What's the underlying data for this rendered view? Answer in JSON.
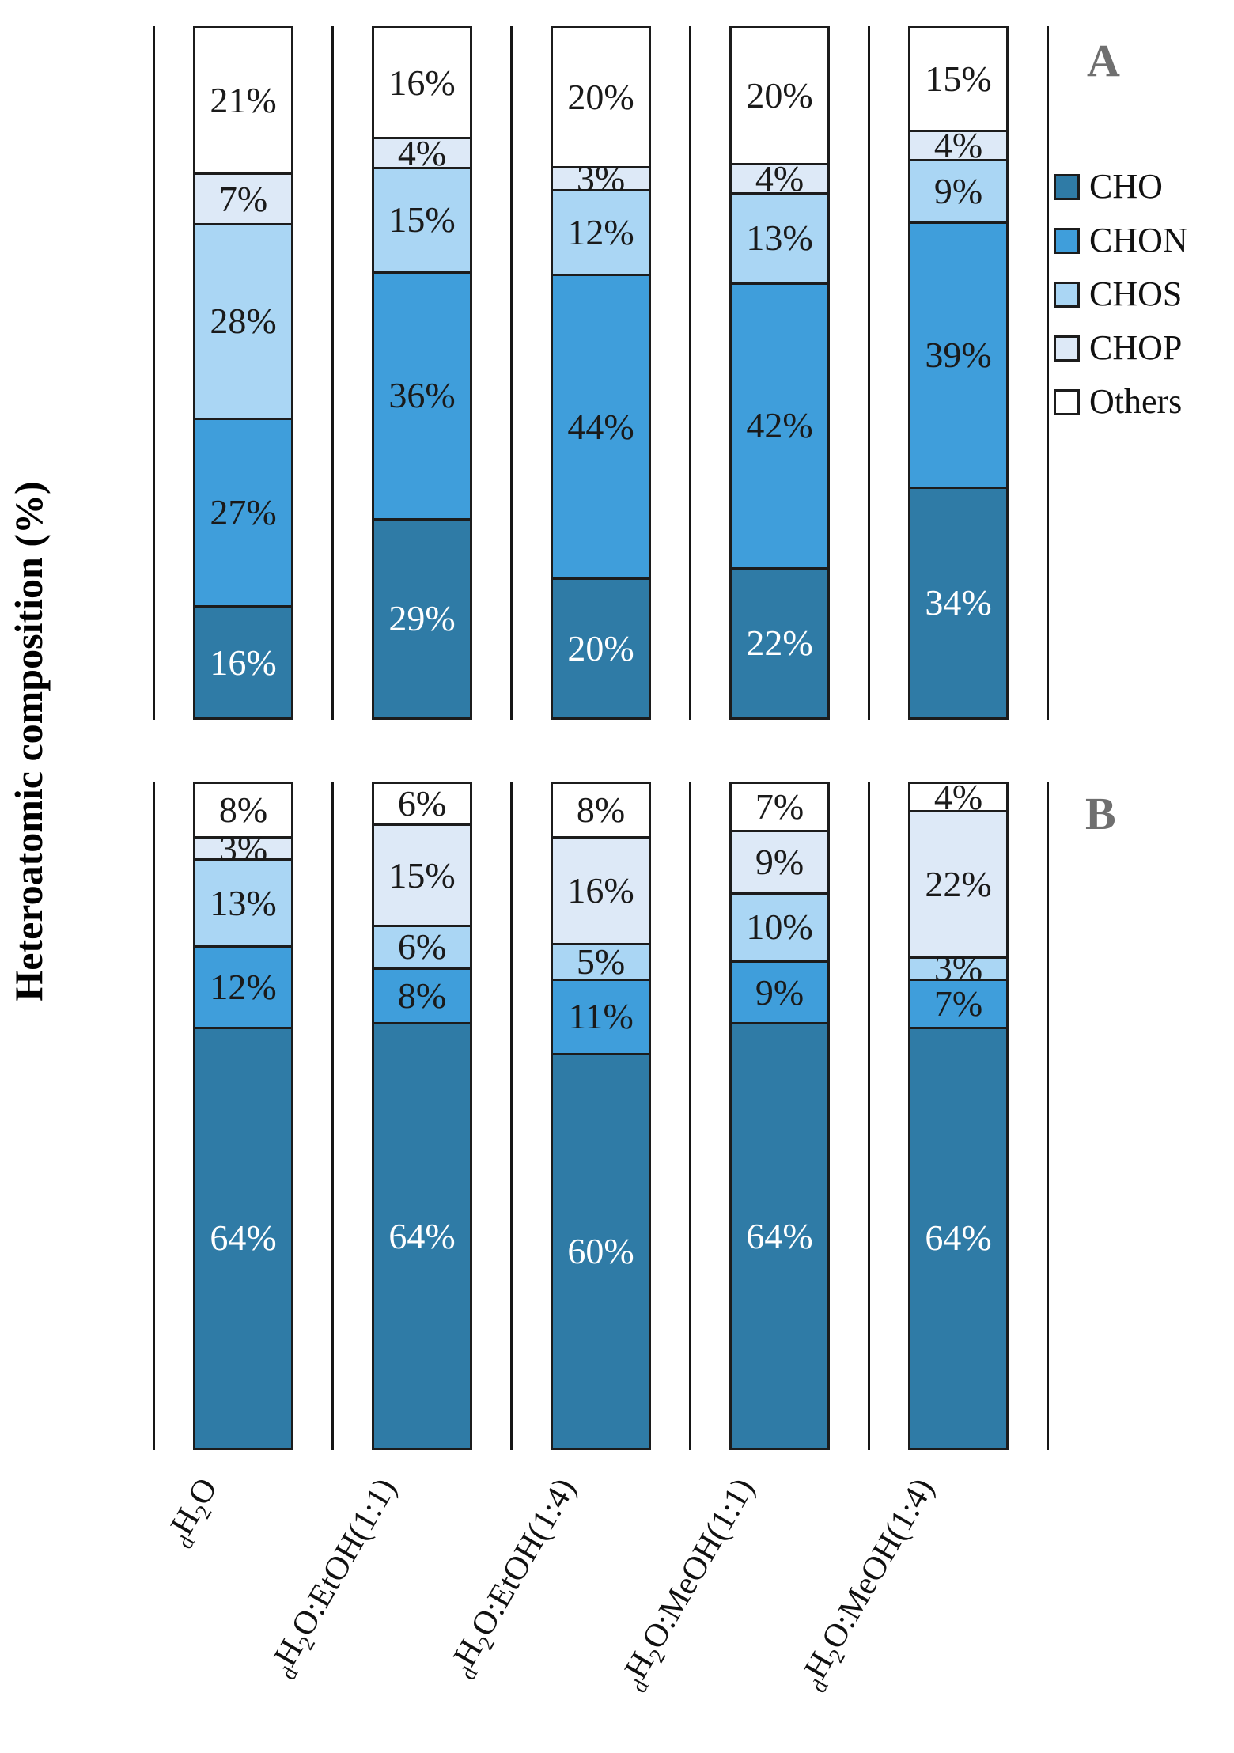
{
  "figure": {
    "ylabel": "Heteroatomic composition (%)"
  },
  "legend": [
    {
      "label": "CHO",
      "color": "#2f7ba6"
    },
    {
      "label": "CHON",
      "color": "#3f9edb"
    },
    {
      "label": "CHOS",
      "color": "#aad6f4"
    },
    {
      "label": "CHOP",
      "color": "#dde9f7"
    },
    {
      "label": "Others",
      "color": "#ffffff"
    }
  ],
  "category_labels": [
    {
      "text": "dH2O",
      "parts": [
        [
          "s",
          "d"
        ],
        [
          "n",
          "H"
        ],
        [
          "s",
          "2"
        ],
        [
          "n",
          "O"
        ]
      ]
    },
    {
      "text": "dH2O:EtOH(1:1)",
      "parts": [
        [
          "s",
          "d"
        ],
        [
          "n",
          "H"
        ],
        [
          "s",
          "2"
        ],
        [
          "n",
          "O:EtOH(1:1)"
        ]
      ]
    },
    {
      "text": "dH2O:EtOH(1:4)",
      "parts": [
        [
          "s",
          "d"
        ],
        [
          "n",
          "H"
        ],
        [
          "s",
          "2"
        ],
        [
          "n",
          "O:EtOH(1:4)"
        ]
      ]
    },
    {
      "text": "dH2O:MeOH(1:1)",
      "parts": [
        [
          "s",
          "d"
        ],
        [
          "n",
          "H"
        ],
        [
          "s",
          "2"
        ],
        [
          "n",
          "O:MeOH(1:1)"
        ]
      ]
    },
    {
      "text": "dH2O:MeOH(1:4)",
      "parts": [
        [
          "s",
          "d"
        ],
        [
          "n",
          "H"
        ],
        [
          "s",
          "2"
        ],
        [
          "n",
          "O:MeOH(1:4)"
        ]
      ]
    }
  ],
  "chart_data": [
    {
      "type": "bar",
      "stacked": true,
      "title": "A",
      "ylabel": "Heteroatomic composition (%)",
      "unit": "%",
      "legend_position": "right",
      "grid": false,
      "categories": [
        "dH2O",
        "dH2O:EtOH(1:1)",
        "dH2O:EtOH(1:4)",
        "dH2O:MeOH(1:1)",
        "dH2O:MeOH(1:4)"
      ],
      "series": [
        {
          "name": "CHO",
          "values": [
            16,
            29,
            20,
            22,
            34
          ]
        },
        {
          "name": "CHON",
          "values": [
            27,
            36,
            44,
            42,
            39
          ]
        },
        {
          "name": "CHOS",
          "values": [
            28,
            15,
            12,
            13,
            9
          ]
        },
        {
          "name": "CHOP",
          "values": [
            7,
            4,
            3,
            4,
            4
          ]
        },
        {
          "name": "Others",
          "values": [
            21,
            16,
            20,
            20,
            15
          ]
        }
      ]
    },
    {
      "type": "bar",
      "stacked": true,
      "title": "B",
      "ylabel": "Heteroatomic composition (%)",
      "unit": "%",
      "legend_position": "right",
      "grid": false,
      "categories": [
        "dH2O",
        "dH2O:EtOH(1:1)",
        "dH2O:EtOH(1:4)",
        "dH2O:MeOH(1:1)",
        "dH2O:MeOH(1:4)"
      ],
      "series": [
        {
          "name": "CHO",
          "values": [
            64,
            64,
            60,
            64,
            64
          ]
        },
        {
          "name": "CHON",
          "values": [
            12,
            8,
            11,
            9,
            7
          ]
        },
        {
          "name": "CHOS",
          "values": [
            13,
            6,
            5,
            10,
            3
          ]
        },
        {
          "name": "CHOP",
          "values": [
            3,
            15,
            16,
            9,
            22
          ]
        },
        {
          "name": "Others",
          "values": [
            8,
            6,
            8,
            7,
            4
          ]
        }
      ]
    }
  ]
}
